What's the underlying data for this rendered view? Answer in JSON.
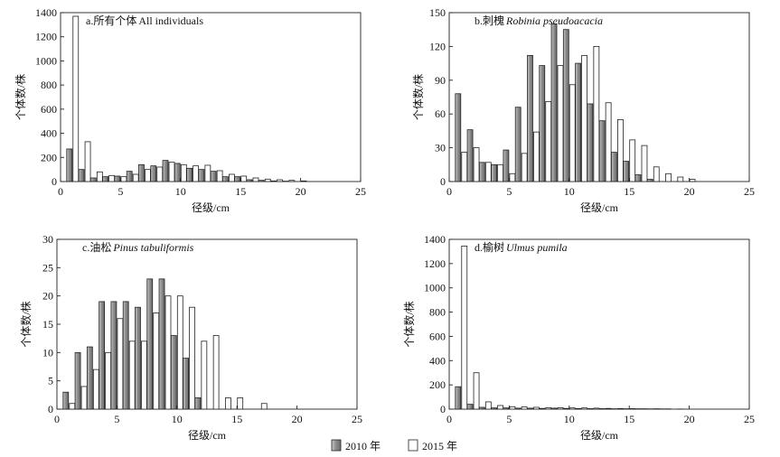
{
  "chart_data": [
    {
      "type": "bar",
      "title_prefix": "a.所有个体",
      "title_latin": "All individuals",
      "title_latin_italic": false,
      "ylabel": "个体数/株",
      "xlabel": "径级/cm",
      "xlim": [
        0,
        25
      ],
      "ylim": [
        0,
        1400
      ],
      "xticks": [
        0,
        5,
        10,
        15,
        20,
        25
      ],
      "yticks": [
        0,
        200,
        400,
        600,
        800,
        1000,
        1200,
        1400
      ],
      "classes": [
        1,
        2,
        3,
        4,
        5,
        6,
        7,
        8,
        9,
        10,
        11,
        12,
        13,
        14,
        15,
        16,
        17,
        18,
        19,
        20
      ],
      "series": [
        {
          "name": "2010 年",
          "values": [
            270,
            100,
            30,
            40,
            45,
            85,
            140,
            130,
            175,
            150,
            110,
            100,
            85,
            40,
            40,
            15,
            10,
            5,
            3,
            0
          ]
        },
        {
          "name": "2015 年",
          "values": [
            1370,
            330,
            80,
            50,
            40,
            60,
            100,
            120,
            160,
            140,
            130,
            135,
            90,
            60,
            45,
            30,
            20,
            15,
            10,
            5
          ]
        }
      ]
    },
    {
      "type": "bar",
      "title_prefix": "b.刺槐",
      "title_latin": "Robinia pseudoacacia",
      "title_latin_italic": true,
      "ylabel": "个体数/株",
      "xlabel": "径级/cm",
      "xlim": [
        0,
        25
      ],
      "ylim": [
        0,
        150
      ],
      "xticks": [
        0,
        5,
        10,
        15,
        20,
        25
      ],
      "yticks": [
        0,
        30,
        60,
        90,
        120,
        150
      ],
      "classes": [
        1,
        2,
        3,
        4,
        5,
        6,
        7,
        8,
        9,
        10,
        11,
        12,
        13,
        14,
        15,
        16,
        17,
        18,
        19,
        20
      ],
      "series": [
        {
          "name": "2010 年",
          "values": [
            78,
            46,
            17,
            15,
            28,
            66,
            112,
            103,
            140,
            135,
            105,
            69,
            54,
            26,
            18,
            6,
            2,
            0,
            0,
            0
          ]
        },
        {
          "name": "2015 年",
          "values": [
            26,
            30,
            17,
            15,
            7,
            25,
            44,
            71,
            103,
            86,
            112,
            120,
            70,
            55,
            37,
            32,
            13,
            7,
            4,
            2
          ]
        }
      ]
    },
    {
      "type": "bar",
      "title_prefix": "c.油松",
      "title_latin": "Pinus tabuliformis",
      "title_latin_italic": true,
      "ylabel": "个体数/株",
      "xlabel": "径级/cm",
      "xlim": [
        0,
        25
      ],
      "ylim": [
        0,
        30
      ],
      "xticks": [
        0,
        5,
        10,
        15,
        20,
        25
      ],
      "yticks": [
        0,
        5,
        10,
        15,
        20,
        25,
        30
      ],
      "classes": [
        1,
        2,
        3,
        4,
        5,
        6,
        7,
        8,
        9,
        10,
        11,
        12,
        13,
        14,
        15,
        16,
        17,
        18,
        19,
        20
      ],
      "series": [
        {
          "name": "2010 年",
          "values": [
            3,
            10,
            11,
            19,
            19,
            19,
            18,
            23,
            23,
            13,
            9,
            2,
            0,
            0,
            0,
            0,
            0,
            0,
            0,
            0
          ]
        },
        {
          "name": "2015 年",
          "values": [
            1,
            4,
            7,
            10,
            16,
            12,
            12,
            17,
            20,
            20,
            18,
            12,
            13,
            2,
            2,
            0,
            1,
            0,
            0,
            0
          ]
        }
      ]
    },
    {
      "type": "bar",
      "title_prefix": "d.榆树",
      "title_latin": "Ulmus pumila",
      "title_latin_italic": true,
      "ylabel": "个体数/株",
      "xlabel": "径级/cm",
      "xlim": [
        0,
        25
      ],
      "ylim": [
        0,
        1400
      ],
      "xticks": [
        0,
        5,
        10,
        15,
        20,
        25
      ],
      "yticks": [
        0,
        200,
        400,
        600,
        800,
        1000,
        1200,
        1400
      ],
      "classes": [
        1,
        2,
        3,
        4,
        5,
        6,
        7,
        8,
        9,
        10,
        11,
        12,
        13,
        14,
        15,
        16,
        17,
        18,
        19,
        20
      ],
      "series": [
        {
          "name": "2010 年",
          "values": [
            185,
            40,
            15,
            10,
            10,
            8,
            8,
            6,
            8,
            6,
            5,
            4,
            4,
            3,
            3,
            3,
            2,
            2,
            0,
            0
          ]
        },
        {
          "name": "2015 年",
          "values": [
            1345,
            300,
            60,
            30,
            20,
            18,
            15,
            12,
            12,
            10,
            10,
            8,
            6,
            5,
            4,
            3,
            3,
            2,
            1,
            0
          ]
        }
      ]
    }
  ],
  "legend": {
    "items": [
      {
        "label": "2010 年",
        "fill": "#9a9a9a"
      },
      {
        "label": "2015 年",
        "fill": "#ffffff"
      }
    ]
  }
}
